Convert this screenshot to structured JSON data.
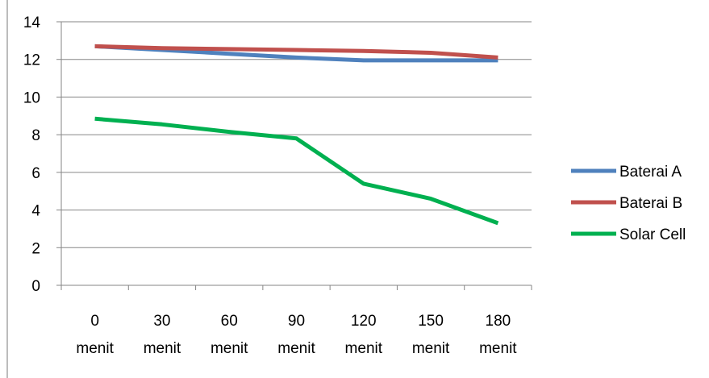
{
  "chart_data": {
    "type": "line",
    "title": "",
    "xlabel": "",
    "ylabel": "",
    "categories": [
      [
        "0",
        "menit"
      ],
      [
        "30",
        "menit"
      ],
      [
        "60",
        "menit"
      ],
      [
        "90",
        "menit"
      ],
      [
        "120",
        "menit"
      ],
      [
        "150",
        "menit"
      ],
      [
        "180",
        "menit"
      ]
    ],
    "ylim": [
      0,
      14
    ],
    "yticks": [
      0,
      2,
      4,
      6,
      8,
      10,
      12,
      14
    ],
    "grid": true,
    "legend_position": "right",
    "series": [
      {
        "name": "Baterai  A",
        "color": "#4F81BD",
        "values": [
          12.7,
          12.5,
          12.3,
          12.1,
          11.95,
          11.95,
          11.95
        ]
      },
      {
        "name": "Baterai  B",
        "color": "#C0504D",
        "values": [
          12.7,
          12.6,
          12.55,
          12.5,
          12.45,
          12.35,
          12.1
        ]
      },
      {
        "name": "Solar Cell",
        "color": "#00B050",
        "values": [
          8.85,
          8.55,
          8.15,
          7.8,
          5.4,
          4.6,
          3.3
        ]
      }
    ]
  }
}
